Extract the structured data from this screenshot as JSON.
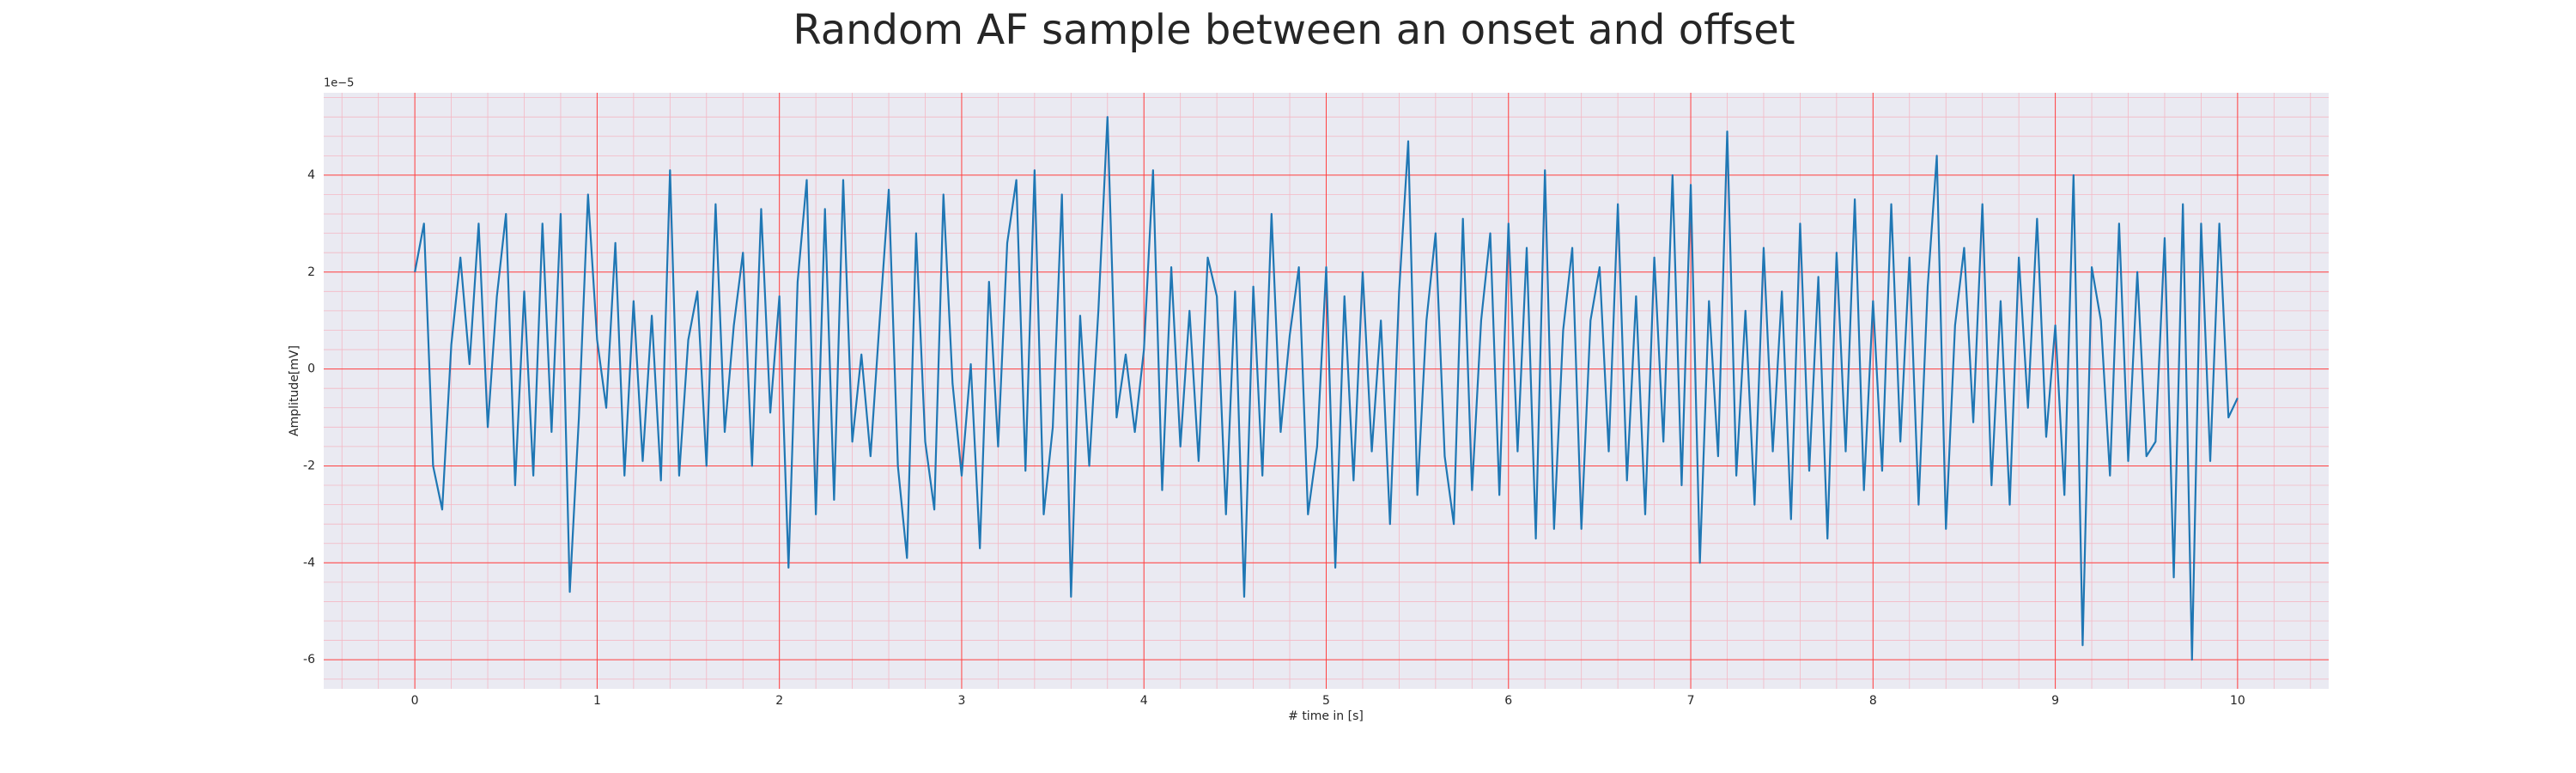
{
  "chart_data": {
    "type": "line",
    "title": "Random AF sample between an onset and offset",
    "xlabel": "# time in [s]",
    "ylabel": "Amplitude[mV]",
    "y_offset_label": "1e−5",
    "color": "#1f77b4",
    "grid": true,
    "minor_grid": true,
    "xlim": [
      -0.5,
      10.5
    ],
    "ylim": [
      -6.6,
      5.7
    ],
    "xticks": [
      0,
      1,
      2,
      3,
      4,
      5,
      6,
      7,
      8,
      9,
      10
    ],
    "yticks": [
      -6,
      -4,
      -2,
      0,
      2,
      4
    ],
    "x": [
      0,
      0.05,
      0.1,
      0.15,
      0.2,
      0.25,
      0.3,
      0.35,
      0.4,
      0.45,
      0.5,
      0.55,
      0.6,
      0.65,
      0.7,
      0.75,
      0.8,
      0.85,
      0.9,
      0.95,
      1,
      1.05,
      1.1,
      1.15,
      1.2,
      1.25,
      1.3,
      1.35,
      1.4,
      1.45,
      1.5,
      1.55,
      1.6,
      1.65,
      1.7,
      1.75,
      1.8,
      1.85,
      1.9,
      1.95,
      2,
      2.05,
      2.1,
      2.15,
      2.2,
      2.25,
      2.3,
      2.35,
      2.4,
      2.45,
      2.5,
      2.55,
      2.6,
      2.65,
      2.7,
      2.75,
      2.8,
      2.85,
      2.9,
      2.95,
      3,
      3.05,
      3.1,
      3.15,
      3.2,
      3.25,
      3.3,
      3.35,
      3.4,
      3.45,
      3.5,
      3.55,
      3.6,
      3.65,
      3.7,
      3.75,
      3.8,
      3.85,
      3.9,
      3.95,
      4,
      4.05,
      4.1,
      4.15,
      4.2,
      4.25,
      4.3,
      4.35,
      4.4,
      4.45,
      4.5,
      4.55,
      4.6,
      4.65,
      4.7,
      4.75,
      4.8,
      4.85,
      4.9,
      4.95,
      5,
      5.05,
      5.1,
      5.15,
      5.2,
      5.25,
      5.3,
      5.35,
      5.4,
      5.45,
      5.5,
      5.55,
      5.6,
      5.65,
      5.7,
      5.75,
      5.8,
      5.85,
      5.9,
      5.95,
      6,
      6.05,
      6.1,
      6.15,
      6.2,
      6.25,
      6.3,
      6.35,
      6.4,
      6.45,
      6.5,
      6.55,
      6.6,
      6.65,
      6.7,
      6.75,
      6.8,
      6.85,
      6.9,
      6.95,
      7,
      7.05,
      7.1,
      7.15,
      7.2,
      7.25,
      7.3,
      7.35,
      7.4,
      7.45,
      7.5,
      7.55,
      7.6,
      7.65,
      7.7,
      7.75,
      7.8,
      7.85,
      7.9,
      7.95,
      8,
      8.05,
      8.1,
      8.15,
      8.2,
      8.25,
      8.3,
      8.35,
      8.4,
      8.45,
      8.5,
      8.55,
      8.6,
      8.65,
      8.7,
      8.75,
      8.8,
      8.85,
      8.9,
      8.95,
      9,
      9.05,
      9.1,
      9.15,
      9.2,
      9.25,
      9.3,
      9.35,
      9.4,
      9.45,
      9.5,
      9.55,
      9.6,
      9.65,
      9.7,
      9.75,
      9.8,
      9.85,
      9.9,
      9.95,
      10
    ],
    "values": [
      2.0,
      3.0,
      -2.0,
      -2.9,
      0.5,
      2.3,
      0.1,
      3.0,
      -1.2,
      1.5,
      3.2,
      -2.4,
      1.6,
      -2.2,
      3.0,
      -1.3,
      3.2,
      -4.6,
      -1.0,
      3.6,
      0.6,
      -0.8,
      2.6,
      -2.2,
      1.4,
      -1.9,
      1.1,
      -2.3,
      4.1,
      -2.2,
      0.6,
      1.6,
      -2.0,
      3.4,
      -1.3,
      0.9,
      2.4,
      -2.0,
      3.3,
      -0.9,
      1.5,
      -4.1,
      1.8,
      3.9,
      -3.0,
      3.3,
      -2.7,
      3.9,
      -1.5,
      0.3,
      -1.8,
      1.0,
      3.7,
      -2.0,
      -3.9,
      2.8,
      -1.5,
      -2.9,
      3.6,
      -0.3,
      -2.2,
      0.1,
      -3.7,
      1.8,
      -1.6,
      2.6,
      3.9,
      -2.1,
      4.1,
      -3.0,
      -1.2,
      3.6,
      -4.7,
      1.1,
      -2.0,
      1.2,
      5.2,
      -1.0,
      0.3,
      -1.3,
      0.4,
      4.1,
      -2.5,
      2.1,
      -1.6,
      1.2,
      -1.9,
      2.3,
      1.5,
      -3.0,
      1.6,
      -4.7,
      1.7,
      -2.2,
      3.2,
      -1.3,
      0.7,
      2.1,
      -3.0,
      -1.6,
      2.1,
      -4.1,
      1.5,
      -2.3,
      2.0,
      -1.7,
      1.0,
      -3.2,
      1.6,
      4.7,
      -2.6,
      1.0,
      2.8,
      -1.8,
      -3.2,
      3.1,
      -2.5,
      1.0,
      2.8,
      -2.6,
      3.0,
      -1.7,
      2.5,
      -3.5,
      4.1,
      -3.3,
      0.8,
      2.5,
      -3.3,
      1.0,
      2.1,
      -1.7,
      3.4,
      -2.3,
      1.5,
      -3.0,
      2.3,
      -1.5,
      4.0,
      -2.4,
      3.8,
      -4.0,
      1.4,
      -1.8,
      4.9,
      -2.2,
      1.2,
      -2.8,
      2.5,
      -1.7,
      1.6,
      -3.1,
      3.0,
      -2.1,
      1.9,
      -3.5,
      2.4,
      -1.7,
      3.5,
      -2.5,
      1.4,
      -2.1,
      3.4,
      -1.5,
      2.3,
      -2.8,
      1.7,
      4.4,
      -3.3,
      0.9,
      2.5,
      -1.1,
      3.4,
      -2.4,
      1.4,
      -2.8,
      2.3,
      -0.8,
      3.1,
      -1.4,
      0.9,
      -2.6,
      4.0,
      -5.7,
      2.1,
      1.0,
      -2.2,
      3.0,
      -1.9,
      2.0,
      -1.8,
      -1.5,
      2.7,
      -4.3,
      3.4,
      -6.0,
      3.0,
      -1.9,
      3.0,
      -1.0,
      -0.6
    ]
  }
}
